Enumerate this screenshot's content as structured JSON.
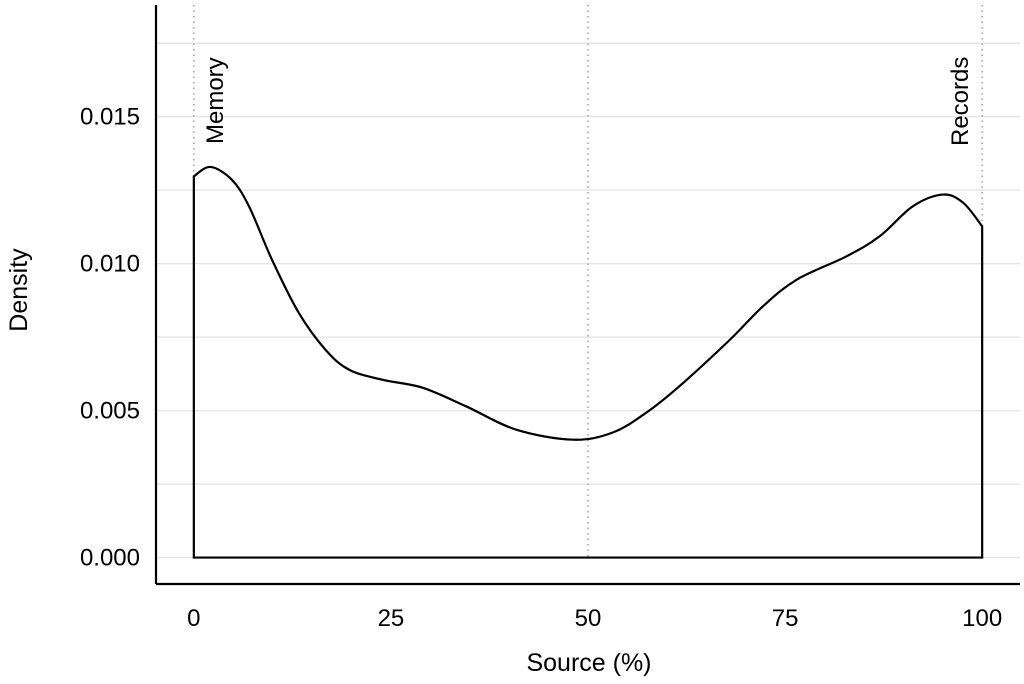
{
  "chart_data": {
    "type": "area",
    "title": "",
    "xlabel": "Source (%)",
    "ylabel": "Density",
    "xlim": [
      -4.8,
      104.8
    ],
    "ylim": [
      -0.0009,
      0.0188
    ],
    "x_ticks": [
      0,
      25,
      50,
      75,
      100
    ],
    "x_tick_labels": [
      "0",
      "25",
      "50",
      "75",
      "100"
    ],
    "y_ticks": [
      0,
      0.005,
      0.01,
      0.015
    ],
    "y_tick_labels": [
      "0.000",
      "0.005",
      "0.010",
      "0.015"
    ],
    "y_minor_grid": [
      0.0025,
      0.0075,
      0.0125,
      0.0175
    ],
    "grid": "horizontal",
    "reference_lines_x": [
      0,
      50,
      100
    ],
    "annotations": [
      {
        "text": "Memory",
        "x": 0
      },
      {
        "text": "Records",
        "x": 100
      }
    ],
    "series": [
      {
        "color": "#000000",
        "x": [
          0,
          2.1,
          4.8,
          7.0,
          9.9,
          13.3,
          16.7,
          19.7,
          23.9,
          29.0,
          34.5,
          40.9,
          48.1,
          53.1,
          57.4,
          61.6,
          68.0,
          72.2,
          76.5,
          82.8,
          87.0,
          91.2,
          95.0,
          97.6,
          100
        ],
        "y": [
          0.01297,
          0.01329,
          0.01286,
          0.01195,
          0.01014,
          0.00833,
          0.00707,
          0.00639,
          0.00605,
          0.00578,
          0.00515,
          0.00435,
          0.00401,
          0.00425,
          0.00493,
          0.00583,
          0.00741,
          0.00855,
          0.00946,
          0.01025,
          0.01093,
          0.01195,
          0.01235,
          0.01207,
          0.01127
        ]
      }
    ]
  }
}
